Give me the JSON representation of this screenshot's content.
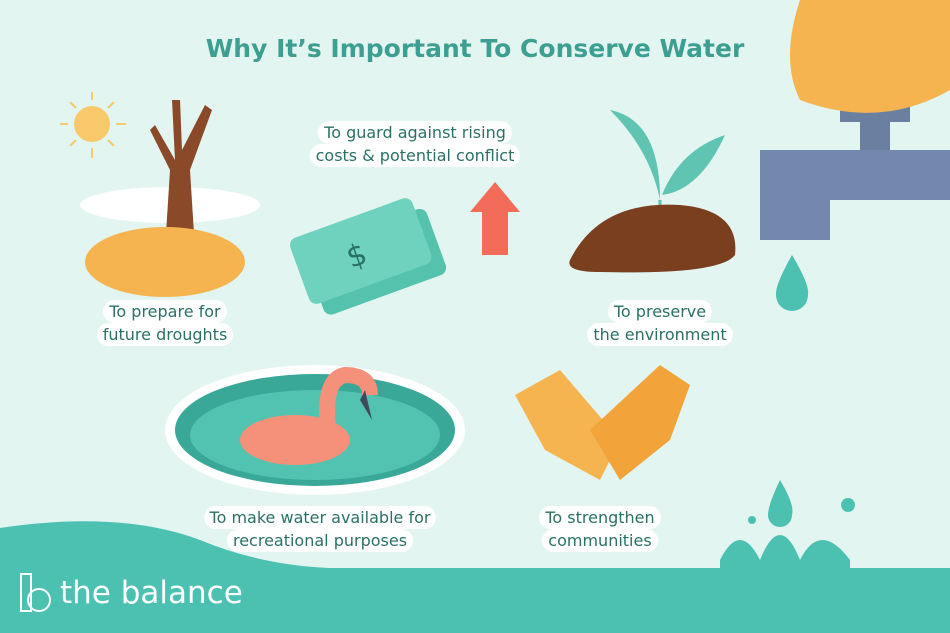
{
  "title": "Why It’s Important To Conserve Water",
  "reasons": [
    {
      "line1": "To prepare for",
      "line2": "future droughts"
    },
    {
      "line1": "To guard against rising",
      "line2": "costs & potential conflict"
    },
    {
      "line1": "To preserve",
      "line2": "the environment"
    },
    {
      "line1": "To make water available for",
      "line2": "recreational purposes"
    },
    {
      "line1": "To strengthen",
      "line2": "communities"
    }
  ],
  "brand": {
    "name": "the balance"
  },
  "colors": {
    "background": "#e2f5f1",
    "teal": "#4cc1b2",
    "title": "#3d9f92",
    "text": "#2a7066"
  }
}
